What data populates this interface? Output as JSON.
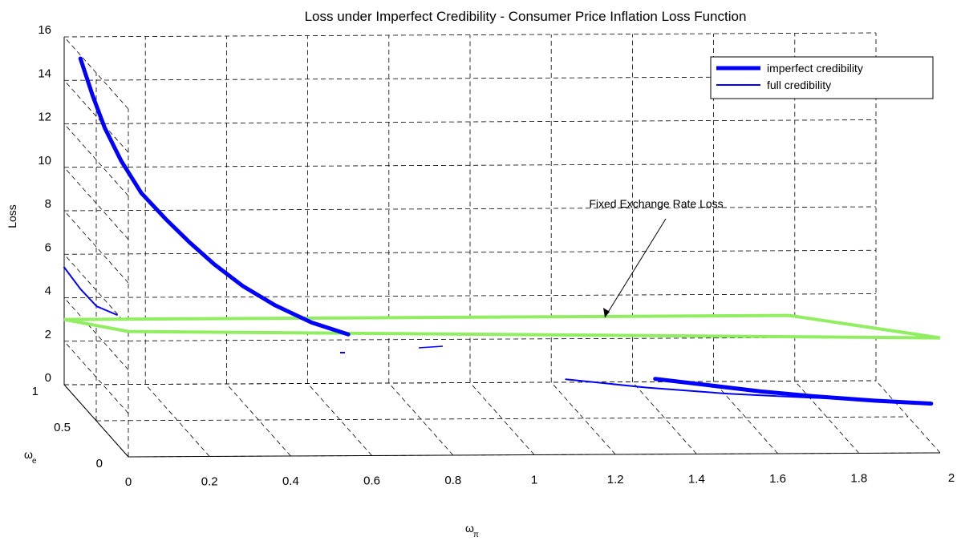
{
  "chart_data": {
    "type": "line",
    "title": "Loss under Imperfect Credibility - Consumer Price Inflation Loss Function",
    "zlabel": "Loss",
    "xlabel_sym": "ω",
    "xlabel_sub": "π",
    "ylabel_sym": "ω",
    "ylabel_sub": "e",
    "x_ticks": [
      "0",
      "0.2",
      "0.4",
      "0.6",
      "0.8",
      "1",
      "1.2",
      "1.4",
      "1.6",
      "1.8",
      "2"
    ],
    "y_ticks": [
      "0",
      "0.5",
      "1"
    ],
    "z_ticks": [
      "0",
      "2",
      "4",
      "6",
      "8",
      "10",
      "12",
      "14",
      "16"
    ],
    "xlim": [
      0,
      2
    ],
    "ylim": [
      0,
      1
    ],
    "zlim": [
      0,
      16
    ],
    "grid": true,
    "legend_position": "top-right",
    "series": [
      {
        "name": "imperfect credibility",
        "color": "#0000ff",
        "style": "thick",
        "points": [
          [
            0.04,
            15.0
          ],
          [
            0.07,
            13.3
          ],
          [
            0.1,
            11.8
          ],
          [
            0.14,
            10.3
          ],
          [
            0.19,
            8.8
          ],
          [
            0.25,
            7.6
          ],
          [
            0.31,
            6.5
          ],
          [
            0.37,
            5.5
          ],
          [
            0.44,
            4.5
          ],
          [
            0.52,
            3.6
          ],
          [
            0.61,
            2.8
          ],
          [
            0.7,
            2.25
          ]
        ],
        "points_low": [
          [
            1.32,
            0.0
          ],
          [
            1.45,
            -0.3
          ],
          [
            1.58,
            -0.6
          ],
          [
            1.72,
            -0.85
          ],
          [
            1.86,
            -1.05
          ],
          [
            2.0,
            -1.2
          ]
        ]
      },
      {
        "name": "full credibility",
        "color": "#0000ff",
        "style": "thin",
        "points": [
          [
            0.0,
            5.4
          ],
          [
            0.04,
            4.4
          ],
          [
            0.08,
            3.6
          ],
          [
            0.13,
            3.2
          ]
        ],
        "points_low": [
          [
            1.1,
            0.0
          ],
          [
            1.3,
            -0.4
          ],
          [
            1.5,
            -0.7
          ],
          [
            1.7,
            -0.9
          ],
          [
            1.9,
            -1.05
          ]
        ]
      }
    ],
    "plane": {
      "name": "Fixed Exchange Rate Loss",
      "color": "#90ee60",
      "z": 3.0
    },
    "annotation": "Fixed Exchange Rate Loss"
  }
}
